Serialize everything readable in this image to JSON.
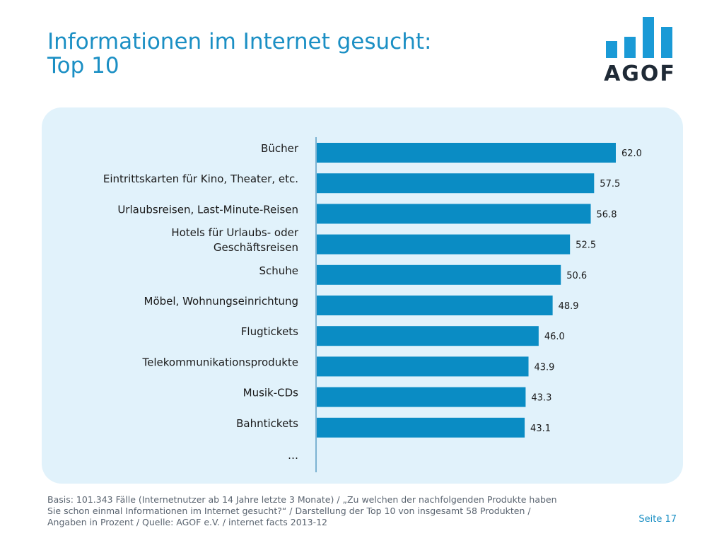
{
  "header": {
    "title_line1": "Informationen im Internet gesucht:",
    "title_line2": "Top 10"
  },
  "logo": {
    "text": "AGOF",
    "color": "#1a9ad6"
  },
  "chart_data": {
    "type": "bar",
    "orientation": "horizontal",
    "categories": [
      "Bücher",
      "Eintrittskarten für Kino, Theater, etc.",
      "Urlaubsreisen, Last-Minute-Reisen",
      "Hotels für Urlaubs- oder Geschäftsreisen",
      "Schuhe",
      "Möbel, Wohnungseinrichtung",
      "Flugtickets",
      "Telekommunikationsprodukte",
      "Musik-CDs",
      "Bahntickets"
    ],
    "category_lines": [
      [
        "Bücher"
      ],
      [
        "Eintrittskarten für Kino, Theater, etc."
      ],
      [
        "Urlaubsreisen, Last-Minute-Reisen"
      ],
      [
        "Hotels für Urlaubs- oder",
        "Geschäftsreisen"
      ],
      [
        "Schuhe"
      ],
      [
        "Möbel, Wohnungseinrichtung"
      ],
      [
        "Flugtickets"
      ],
      [
        "Telekommunikationsprodukte"
      ],
      [
        "Musik-CDs"
      ],
      [
        "Bahntickets"
      ]
    ],
    "values": [
      62.0,
      57.5,
      56.8,
      52.5,
      50.6,
      48.9,
      46.0,
      43.9,
      43.3,
      43.1
    ],
    "value_labels": [
      "62.0",
      "57.5",
      "56.8",
      "52.5",
      "50.6",
      "48.9",
      "46.0",
      "43.9",
      "43.3",
      "43.1"
    ],
    "extra_category": "…",
    "xlim": [
      0,
      62
    ],
    "bar_color": "#0a8cc4",
    "grid": false,
    "title": "",
    "xlabel": "",
    "ylabel": ""
  },
  "footnote": {
    "line1": "Basis: 101.343 Fälle (Internetnutzer ab 14 Jahre letzte 3 Monate) / „Zu welchen der nachfolgenden Produkte haben",
    "line2": "Sie schon einmal Informationen im Internet gesucht?“ / Darstellung der Top 10 von insgesamt 58 Produkten /",
    "line3": "Angaben in Prozent / Quelle: AGOF e.V. / internet facts 2013-12"
  },
  "page_number": "Seite 17"
}
